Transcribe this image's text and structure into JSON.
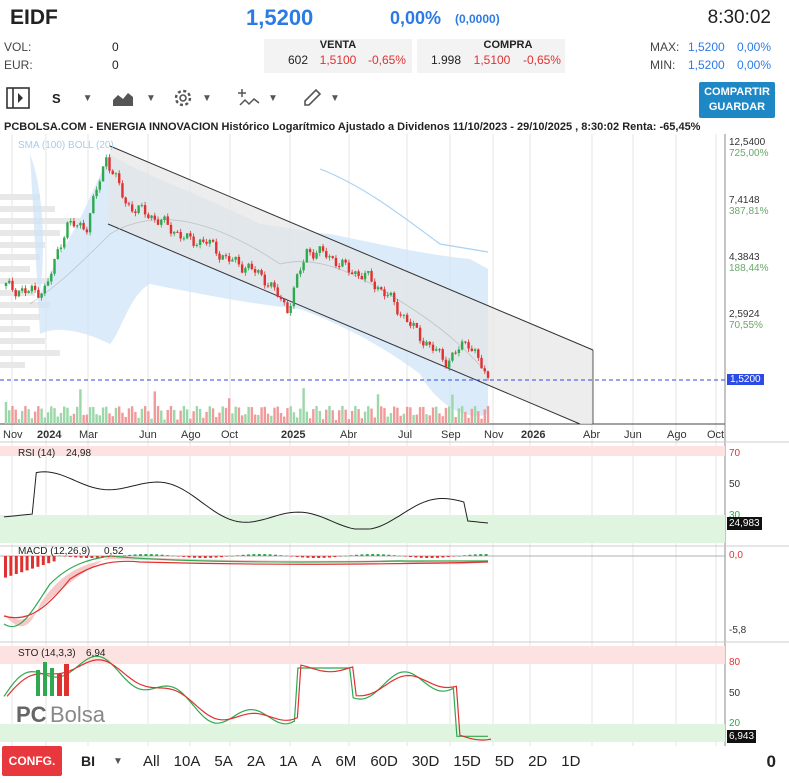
{
  "header": {
    "ticker": "EIDF",
    "price": "1,5200",
    "change_pct": "0,00%",
    "change_abs": "(0,0000)",
    "time": "8:30:02"
  },
  "stats": {
    "vol_label": "VOL:",
    "vol_value": "0",
    "eur_label": "EUR:",
    "eur_value": "0",
    "max_label": "MAX:",
    "max_value": "1,5200",
    "max_pct": "0,00%",
    "min_label": "MIN:",
    "min_value": "1,5200",
    "min_pct": "0,00%"
  },
  "quote": {
    "venta_label": "VENTA",
    "venta_qty": "602",
    "venta_price": "1,5100",
    "venta_pct": "-0,65%",
    "compra_label": "COMPRA",
    "compra_qty": "1.998",
    "compra_price": "1,5100",
    "compra_pct": "-0,65%"
  },
  "toolbar": {
    "scale_label": "S",
    "share_line1": "COMPARTIR",
    "share_line2": "GUARDAR",
    "icons": [
      "panel-toggle-icon",
      "area-chart-icon",
      "gear-icon",
      "indicator-icon",
      "pencil-icon"
    ]
  },
  "chart": {
    "title": "PCBOLSA.COM - ENERGIA INNOVACION Histórico Logarítmico Ajustado a Dividenos 11/10/2023 - 29/10/2025 , 8:30:02 Renta: -65,45%",
    "overlay_label": "SMA (100) BOLL (20)",
    "price_axis": [
      {
        "price": "12,5400",
        "pct": "725,00%"
      },
      {
        "price": "7,4148",
        "pct": "387,81%"
      },
      {
        "price": "4,3843",
        "pct": "188,44%"
      },
      {
        "price": "2,5924",
        "pct": "70,55%"
      }
    ],
    "last_price_tag": "1,5200",
    "time_axis": [
      "Nov",
      "2024",
      "Mar",
      "Jun",
      "Ago",
      "Oct",
      "2025",
      "Abr",
      "Jul",
      "Sep",
      "Nov",
      "2026",
      "Abr",
      "Jun",
      "Ago",
      "Oct"
    ],
    "accent": "#2c7be5",
    "up_color": "#2fa84f",
    "down_color": "#e03131"
  },
  "rsi": {
    "label": "RSI (14)",
    "value": "24,98",
    "axis": [
      "70",
      "50",
      "30"
    ],
    "tag": "24,983"
  },
  "macd": {
    "label": "MACD (12,26,9)",
    "value": "0,52",
    "axis": [
      "0,0",
      "-5,8"
    ]
  },
  "sto": {
    "label": "STO (14,3,3)",
    "value": "6,94",
    "axis": [
      "80",
      "50",
      "20"
    ],
    "tag": "6,943"
  },
  "watermark": {
    "text_pc": "PC",
    "text_bolsa": "Bolsa"
  },
  "footer": {
    "config_label": "CONFG.",
    "interval_label": "BI",
    "periods": [
      "All",
      "10A",
      "5A",
      "2A",
      "1A",
      "A",
      "6M",
      "60D",
      "30D",
      "15D",
      "5D",
      "2D",
      "1D"
    ],
    "counter": "0"
  },
  "chart_data": {
    "type": "candlestick",
    "title": "PCBOLSA.COM - ENERGIA INNOVACION Histórico Logarítmico Ajustado a Dividenos 11/10/2023 - 29/10/2025 , 8:30:02 Renta: -65,45%",
    "y_scale": "log",
    "y_ticks": [
      12.54,
      7.4148,
      4.3843,
      2.5924,
      1.52
    ],
    "x_ticks": [
      "Nov",
      "2024",
      "Mar",
      "Jun",
      "Ago",
      "Oct",
      "2025",
      "Abr",
      "Jul",
      "Sep",
      "Nov",
      "2026",
      "Abr",
      "Jun",
      "Ago",
      "Oct"
    ],
    "close_series": [
      {
        "date": "2023-10",
        "close": 3.6
      },
      {
        "date": "2023-11",
        "close": 3.4
      },
      {
        "date": "2023-12",
        "close": 3.5
      },
      {
        "date": "2024-01",
        "close": 6.3
      },
      {
        "date": "2024-02",
        "close": 6.2
      },
      {
        "date": "2024-03",
        "close": 11.8
      },
      {
        "date": "2024-04",
        "close": 7.6
      },
      {
        "date": "2024-05",
        "close": 7.0
      },
      {
        "date": "2024-06",
        "close": 6.3
      },
      {
        "date": "2024-07",
        "close": 5.5
      },
      {
        "date": "2024-08",
        "close": 5.4
      },
      {
        "date": "2024-09",
        "close": 4.6
      },
      {
        "date": "2024-10",
        "close": 4.3
      },
      {
        "date": "2024-11",
        "close": 3.8
      },
      {
        "date": "2024-12",
        "close": 2.9
      },
      {
        "date": "2025-01",
        "close": 5.0
      },
      {
        "date": "2025-02",
        "close": 4.8
      },
      {
        "date": "2025-03",
        "close": 4.2
      },
      {
        "date": "2025-04",
        "close": 3.9
      },
      {
        "date": "2025-05",
        "close": 3.3
      },
      {
        "date": "2025-06",
        "close": 2.6
      },
      {
        "date": "2025-07",
        "close": 2.1
      },
      {
        "date": "2025-08",
        "close": 1.8
      },
      {
        "date": "2025-09",
        "close": 2.2
      },
      {
        "date": "2025-10",
        "close": 1.52
      }
    ],
    "last_price": 1.52,
    "rsi_last": 24.983,
    "sto_last": 6.943,
    "macd_value": 0.52
  }
}
